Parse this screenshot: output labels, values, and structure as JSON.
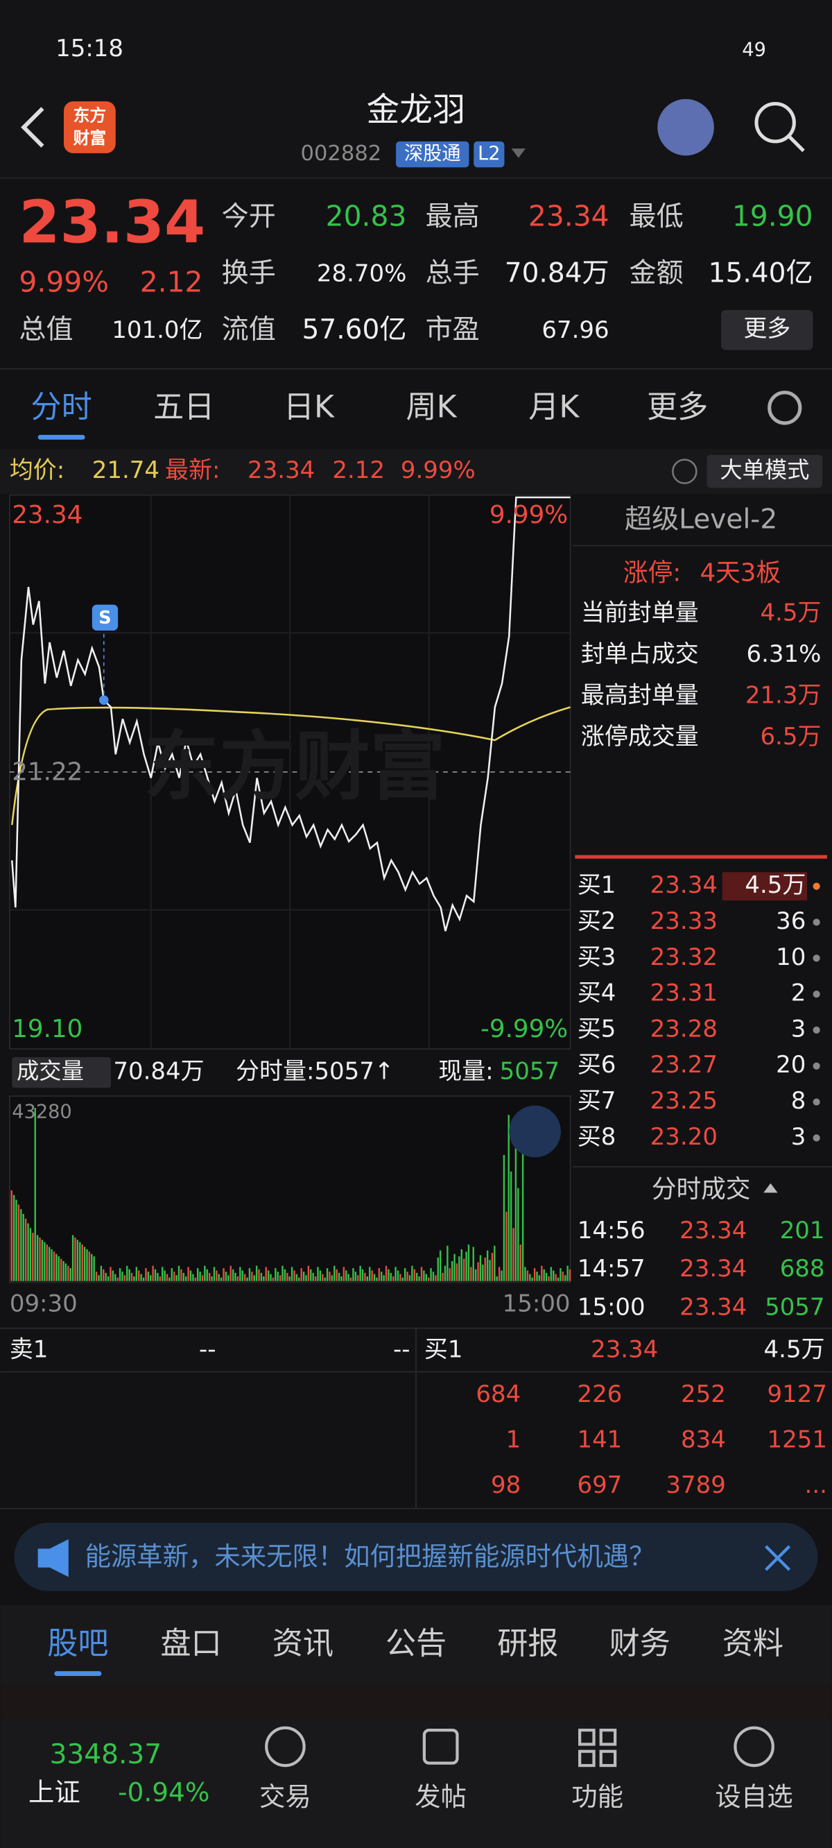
{
  "status": {
    "time": "15:18",
    "battery": "49"
  },
  "header": {
    "logo_top": "东方",
    "logo_bottom": "财富",
    "title": "金龙羽",
    "code": "002882",
    "tag1": "深股通",
    "tag2": "L2"
  },
  "quote": {
    "price": "23.34",
    "pct": "9.99%",
    "change": "2.12",
    "fields": [
      {
        "label": "今开",
        "value": "20.83"
      },
      {
        "label": "最高",
        "value": "23.34"
      },
      {
        "label": "最低",
        "value": "19.90"
      },
      {
        "label": "换手",
        "value": "28.70%"
      },
      {
        "label": "总手",
        "value": "70.84万"
      },
      {
        "label": "金额",
        "value": "15.40亿"
      },
      {
        "label": "总值",
        "value": "101.0亿"
      },
      {
        "label": "流值",
        "value": "57.60亿"
      },
      {
        "label": "市盈",
        "value": "67.96"
      }
    ],
    "more": "更多"
  },
  "tabs": [
    "分时",
    "五日",
    "日K",
    "周K",
    "月K",
    "更多"
  ],
  "info": {
    "avg_label": "均价:",
    "avg": "21.74",
    "last_label": "最新:",
    "last": "23.34",
    "change": "2.12",
    "pct": "9.99%",
    "mode": "大单模式"
  },
  "chart": {
    "top_price": "23.34",
    "top_pct": "9.99%",
    "mid_price": "21.22",
    "bottom_price": "19.10",
    "bottom_pct": "-9.99%",
    "marker": "S",
    "watermark": "东方财富"
  },
  "volume": {
    "label": "成交量",
    "total": "70.84万",
    "minute": "分时量:5057↑",
    "now_label": "现量:",
    "now": "5057",
    "max": "43280",
    "start": "09:30",
    "end": "15:00"
  },
  "level2": {
    "title": "超级Level-2",
    "limit_label": "涨停:",
    "limit": "4天3板",
    "rows": [
      {
        "label": "当前封单量",
        "value": "4.5万"
      },
      {
        "label": "封单占成交",
        "value": "6.31%"
      },
      {
        "label": "最高封单量",
        "value": "21.3万"
      },
      {
        "label": "涨停成交量",
        "value": "6.5万"
      }
    ]
  },
  "bids": [
    {
      "label": "买1",
      "price": "23.34",
      "volume": "4.5万"
    },
    {
      "label": "买2",
      "price": "23.33",
      "volume": "36"
    },
    {
      "label": "买3",
      "price": "23.32",
      "volume": "10"
    },
    {
      "label": "买4",
      "price": "23.31",
      "volume": "2"
    },
    {
      "label": "买5",
      "price": "23.28",
      "volume": "3"
    },
    {
      "label": "买6",
      "price": "23.27",
      "volume": "20"
    },
    {
      "label": "买7",
      "price": "23.25",
      "volume": "8"
    },
    {
      "label": "买8",
      "price": "23.20",
      "volume": "3"
    }
  ],
  "trades": {
    "title": "分时成交",
    "rows": [
      {
        "time": "14:56",
        "price": "23.34",
        "volume": "201"
      },
      {
        "time": "14:57",
        "price": "23.34",
        "volume": "688"
      },
      {
        "time": "15:00",
        "price": "23.34",
        "volume": "5057"
      }
    ]
  },
  "orders": {
    "sell_label": "卖1",
    "sell_price": "--",
    "sell_volume": "--",
    "buy_label": "买1",
    "buy_price": "23.34",
    "buy_volume": "4.5万",
    "queue": [
      [
        "684",
        "226",
        "252",
        "9127"
      ],
      [
        "1",
        "141",
        "834",
        "1251"
      ],
      [
        "98",
        "697",
        "3789",
        "..."
      ]
    ]
  },
  "banner": "能源革新，未来无限！如何把握新能源时代机遇？",
  "bottom_tabs": [
    "股吧",
    "盘口",
    "资讯",
    "公告",
    "研报",
    "财务",
    "资料"
  ],
  "nav": {
    "index_value": "3348.37",
    "index_name": "上证",
    "index_pct": "-0.94%",
    "items": [
      "交易",
      "发帖",
      "功能",
      "设自选"
    ]
  }
}
